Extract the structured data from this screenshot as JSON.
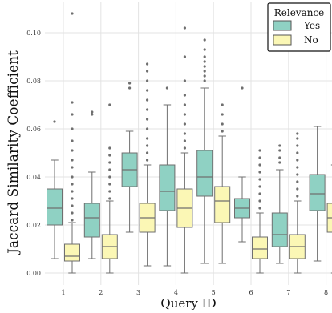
{
  "chart_data": {
    "type": "box",
    "xlabel": "Query ID",
    "ylabel": "Jaccard Similarity Coefficient",
    "categories": [
      "1",
      "2",
      "3",
      "4",
      "5",
      "6",
      "7",
      "8"
    ],
    "y_ticks": [
      "0.00",
      "0.02",
      "0.04",
      "0.06",
      "0.08",
      "0.10"
    ],
    "ylim": [
      -0.005,
      0.113
    ],
    "grid": true,
    "legend": {
      "title": "Relevance",
      "position": "top-right",
      "entries": [
        {
          "label": "Yes",
          "color": "#8fd1c3"
        },
        {
          "label": "No",
          "color": "#fbf7b5"
        }
      ]
    },
    "series": [
      {
        "name": "Yes",
        "color": "#8fd1c3",
        "boxes": [
          {
            "whisker_low": 0.006,
            "q1": 0.02,
            "median": 0.027,
            "q3": 0.035,
            "whisker_high": 0.047,
            "outliers": [
              0.063
            ]
          },
          {
            "whisker_low": 0.006,
            "q1": 0.015,
            "median": 0.023,
            "q3": 0.029,
            "whisker_high": 0.042,
            "outliers": [
              0.066,
              0.067
            ]
          },
          {
            "whisker_low": 0.017,
            "q1": 0.036,
            "median": 0.043,
            "q3": 0.05,
            "whisker_high": 0.059,
            "outliers": [
              0.077,
              0.079
            ]
          },
          {
            "whisker_low": 0.003,
            "q1": 0.026,
            "median": 0.034,
            "q3": 0.045,
            "whisker_high": 0.07,
            "outliers": [
              0.077
            ]
          },
          {
            "whisker_low": 0.004,
            "q1": 0.032,
            "median": 0.04,
            "q3": 0.051,
            "whisker_high": 0.077,
            "outliers": [
              0.08,
              0.082,
              0.084,
              0.086,
              0.088,
              0.09,
              0.093,
              0.097
            ]
          },
          {
            "whisker_low": 0.013,
            "q1": 0.023,
            "median": 0.027,
            "q3": 0.031,
            "whisker_high": 0.04,
            "outliers": [
              0.077
            ]
          },
          {
            "whisker_low": 0.004,
            "q1": 0.011,
            "median": 0.016,
            "q3": 0.025,
            "whisker_high": 0.043,
            "outliers": [
              0.046,
              0.048,
              0.051,
              0.053
            ]
          },
          {
            "whisker_low": 0.005,
            "q1": 0.026,
            "median": 0.033,
            "q3": 0.041,
            "whisker_high": 0.061,
            "outliers": []
          }
        ]
      },
      {
        "name": "No",
        "color": "#fbf7b5",
        "boxes": [
          {
            "whisker_low": 0.0,
            "q1": 0.005,
            "median": 0.007,
            "q3": 0.012,
            "whisker_high": 0.021,
            "outliers": [
              0.022,
              0.025,
              0.028,
              0.031,
              0.034,
              0.037,
              0.04,
              0.044,
              0.047,
              0.051,
              0.055,
              0.06,
              0.066,
              0.071,
              0.108
            ]
          },
          {
            "whisker_low": 0.0,
            "q1": 0.006,
            "median": 0.011,
            "q3": 0.016,
            "whisker_high": 0.03,
            "outliers": [
              0.031,
              0.034,
              0.037,
              0.04,
              0.043,
              0.046,
              0.049,
              0.052,
              0.07
            ]
          },
          {
            "whisker_low": 0.003,
            "q1": 0.017,
            "median": 0.023,
            "q3": 0.029,
            "whisker_high": 0.045,
            "outliers": [
              0.047,
              0.05,
              0.053,
              0.056,
              0.06,
              0.064,
              0.068,
              0.072,
              0.076,
              0.08,
              0.084,
              0.087
            ]
          },
          {
            "whisker_low": 0.0,
            "q1": 0.019,
            "median": 0.027,
            "q3": 0.035,
            "whisker_high": 0.05,
            "outliers": [
              0.052,
              0.055,
              0.058,
              0.062,
              0.066,
              0.07,
              0.074,
              0.08,
              0.09,
              0.102
            ]
          },
          {
            "whisker_low": 0.004,
            "q1": 0.021,
            "median": 0.03,
            "q3": 0.036,
            "whisker_high": 0.057,
            "outliers": [
              0.059,
              0.062,
              0.066,
              0.07
            ]
          },
          {
            "whisker_low": 0.0,
            "q1": 0.006,
            "median": 0.01,
            "q3": 0.015,
            "whisker_high": 0.025,
            "outliers": [
              0.027,
              0.03,
              0.033,
              0.036,
              0.039,
              0.042,
              0.045,
              0.048,
              0.051
            ]
          },
          {
            "whisker_low": 0.0,
            "q1": 0.006,
            "median": 0.011,
            "q3": 0.016,
            "whisker_high": 0.03,
            "outliers": [
              0.032,
              0.035,
              0.038,
              0.041,
              0.044,
              0.047,
              0.05,
              0.053,
              0.056,
              0.058
            ]
          },
          {
            "whisker_low": 0.0,
            "q1": 0.017,
            "median": 0.023,
            "q3": 0.029,
            "whisker_high": 0.045,
            "outliers": [
              0.047,
              0.05,
              0.053,
              0.056,
              0.059,
              0.062,
              0.066
            ]
          }
        ]
      }
    ]
  }
}
